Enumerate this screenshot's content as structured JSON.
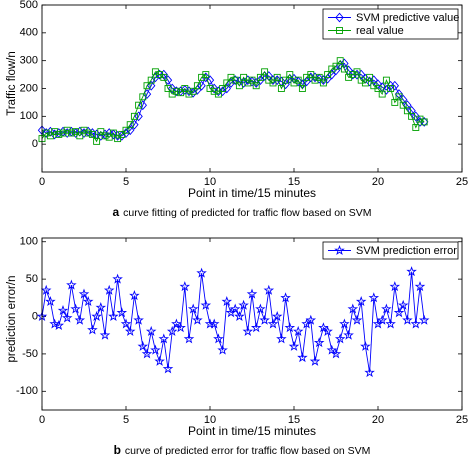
{
  "chart_data": [
    {
      "type": "line",
      "xlabel": "Point in time/15 minutes",
      "ylabel": "Traffic flow/n",
      "caption_label": "a",
      "caption": "curve fitting of predicted for traffic flow based on SVM",
      "xlim": [
        0,
        25
      ],
      "xticks": [
        0,
        5,
        10,
        15,
        20,
        25
      ],
      "ylim": [
        -100,
        500
      ],
      "yticks": [
        0,
        100,
        200,
        300,
        400,
        500
      ],
      "legend": "upper right",
      "x": [
        0,
        0.25,
        0.5,
        0.75,
        1,
        1.25,
        1.5,
        1.75,
        2,
        2.25,
        2.5,
        2.75,
        3,
        3.25,
        3.5,
        3.75,
        4,
        4.25,
        4.5,
        4.75,
        5,
        5.25,
        5.5,
        5.75,
        6,
        6.25,
        6.5,
        6.75,
        7,
        7.25,
        7.5,
        7.75,
        8,
        8.25,
        8.5,
        8.75,
        9,
        9.25,
        9.5,
        9.75,
        10,
        10.25,
        10.5,
        10.75,
        11,
        11.25,
        11.5,
        11.75,
        12,
        12.25,
        12.5,
        12.75,
        13,
        13.25,
        13.5,
        13.75,
        14,
        14.25,
        14.5,
        14.75,
        15,
        15.25,
        15.5,
        15.75,
        16,
        16.25,
        16.5,
        16.75,
        17,
        17.25,
        17.5,
        17.75,
        18,
        18.25,
        18.5,
        18.75,
        19,
        19.25,
        19.5,
        19.75,
        20,
        20.25,
        20.5,
        20.75,
        21,
        21.25,
        21.5,
        21.75,
        22,
        22.25,
        22.5,
        22.75
      ],
      "series": [
        {
          "name": "SVM predictive value",
          "color": "#0000ff",
          "marker": "diamond",
          "values": [
            50,
            40,
            45,
            35,
            40,
            45,
            40,
            45,
            40,
            45,
            40,
            45,
            40,
            35,
            30,
            35,
            40,
            35,
            30,
            30,
            40,
            50,
            70,
            100,
            140,
            180,
            210,
            240,
            250,
            250,
            230,
            200,
            190,
            190,
            195,
            190,
            185,
            195,
            210,
            240,
            230,
            200,
            190,
            190,
            200,
            220,
            230,
            225,
            220,
            230,
            225,
            220,
            230,
            245,
            245,
            230,
            230,
            225,
            215,
            235,
            235,
            225,
            215,
            225,
            240,
            240,
            235,
            230,
            235,
            250,
            265,
            285,
            290,
            265,
            250,
            250,
            250,
            235,
            225,
            230,
            215,
            205,
            195,
            210,
            210,
            180,
            160,
            140,
            120,
            100,
            80,
            80
          ]
        },
        {
          "name": "real value",
          "color": "#00a000",
          "marker": "square",
          "values": [
            20,
            40,
            30,
            45,
            35,
            40,
            50,
            40,
            45,
            30,
            50,
            40,
            35,
            10,
            45,
            30,
            25,
            40,
            20,
            35,
            50,
            70,
            100,
            140,
            170,
            210,
            230,
            260,
            250,
            240,
            200,
            180,
            190,
            185,
            200,
            180,
            190,
            210,
            240,
            250,
            200,
            190,
            180,
            200,
            220,
            240,
            230,
            210,
            240,
            220,
            230,
            210,
            240,
            260,
            230,
            220,
            240,
            200,
            230,
            250,
            220,
            230,
            200,
            240,
            250,
            230,
            240,
            220,
            250,
            270,
            280,
            300,
            270,
            240,
            250,
            260,
            230,
            220,
            240,
            210,
            200,
            180,
            230,
            200,
            150,
            170,
            140,
            120,
            100,
            60,
            90,
            80
          ]
        }
      ]
    },
    {
      "type": "line",
      "xlabel": "Point in time/15 minutes",
      "ylabel": "prediction error/n",
      "caption_label": "b",
      "caption": "curve of predicted error for traffic flow based on SVM",
      "xlim": [
        0,
        25
      ],
      "xticks": [
        0,
        5,
        10,
        15,
        20,
        25
      ],
      "ylim": [
        -125,
        105
      ],
      "yticks": [
        -100,
        -50,
        0,
        50,
        100
      ],
      "legend": "upper right",
      "x": [
        0,
        0.25,
        0.5,
        0.75,
        1,
        1.25,
        1.5,
        1.75,
        2,
        2.25,
        2.5,
        2.75,
        3,
        3.25,
        3.5,
        3.75,
        4,
        4.25,
        4.5,
        4.75,
        5,
        5.25,
        5.5,
        5.75,
        6,
        6.25,
        6.5,
        6.75,
        7,
        7.25,
        7.5,
        7.75,
        8,
        8.25,
        8.5,
        8.75,
        9,
        9.25,
        9.5,
        9.75,
        10,
        10.25,
        10.5,
        10.75,
        11,
        11.25,
        11.5,
        11.75,
        12,
        12.25,
        12.5,
        12.75,
        13,
        13.25,
        13.5,
        13.75,
        14,
        14.25,
        14.5,
        14.75,
        15,
        15.25,
        15.5,
        15.75,
        16,
        16.25,
        16.5,
        16.75,
        17,
        17.25,
        17.5,
        17.75,
        18,
        18.25,
        18.5,
        18.75,
        19,
        19.25,
        19.5,
        19.75,
        20,
        20.25,
        20.5,
        20.75,
        21,
        21.25,
        21.5,
        21.75,
        22,
        22.25,
        22.5,
        22.75
      ],
      "series": [
        {
          "name": "SVM prediction error",
          "color": "#0000ff",
          "marker": "star",
          "values": [
            0,
            35,
            20,
            -10,
            -12,
            8,
            -2,
            42,
            10,
            -5,
            30,
            20,
            -18,
            0,
            12,
            -25,
            35,
            0,
            50,
            5,
            -10,
            -20,
            28,
            -5,
            -40,
            -50,
            -20,
            -45,
            -60,
            -30,
            -70,
            -20,
            -10,
            -15,
            40,
            -30,
            10,
            -5,
            58,
            15,
            -10,
            -10,
            -30,
            -45,
            20,
            5,
            10,
            0,
            15,
            -20,
            30,
            -15,
            10,
            -5,
            35,
            -10,
            0,
            -30,
            25,
            -15,
            -40,
            -20,
            -55,
            -10,
            -5,
            -60,
            -35,
            -15,
            -20,
            -45,
            -50,
            -30,
            -10,
            -25,
            10,
            -5,
            20,
            -40,
            -75,
            25,
            -10,
            -5,
            10,
            -10,
            40,
            5,
            15,
            -5,
            60,
            -10,
            40,
            -5
          ]
        }
      ]
    }
  ]
}
